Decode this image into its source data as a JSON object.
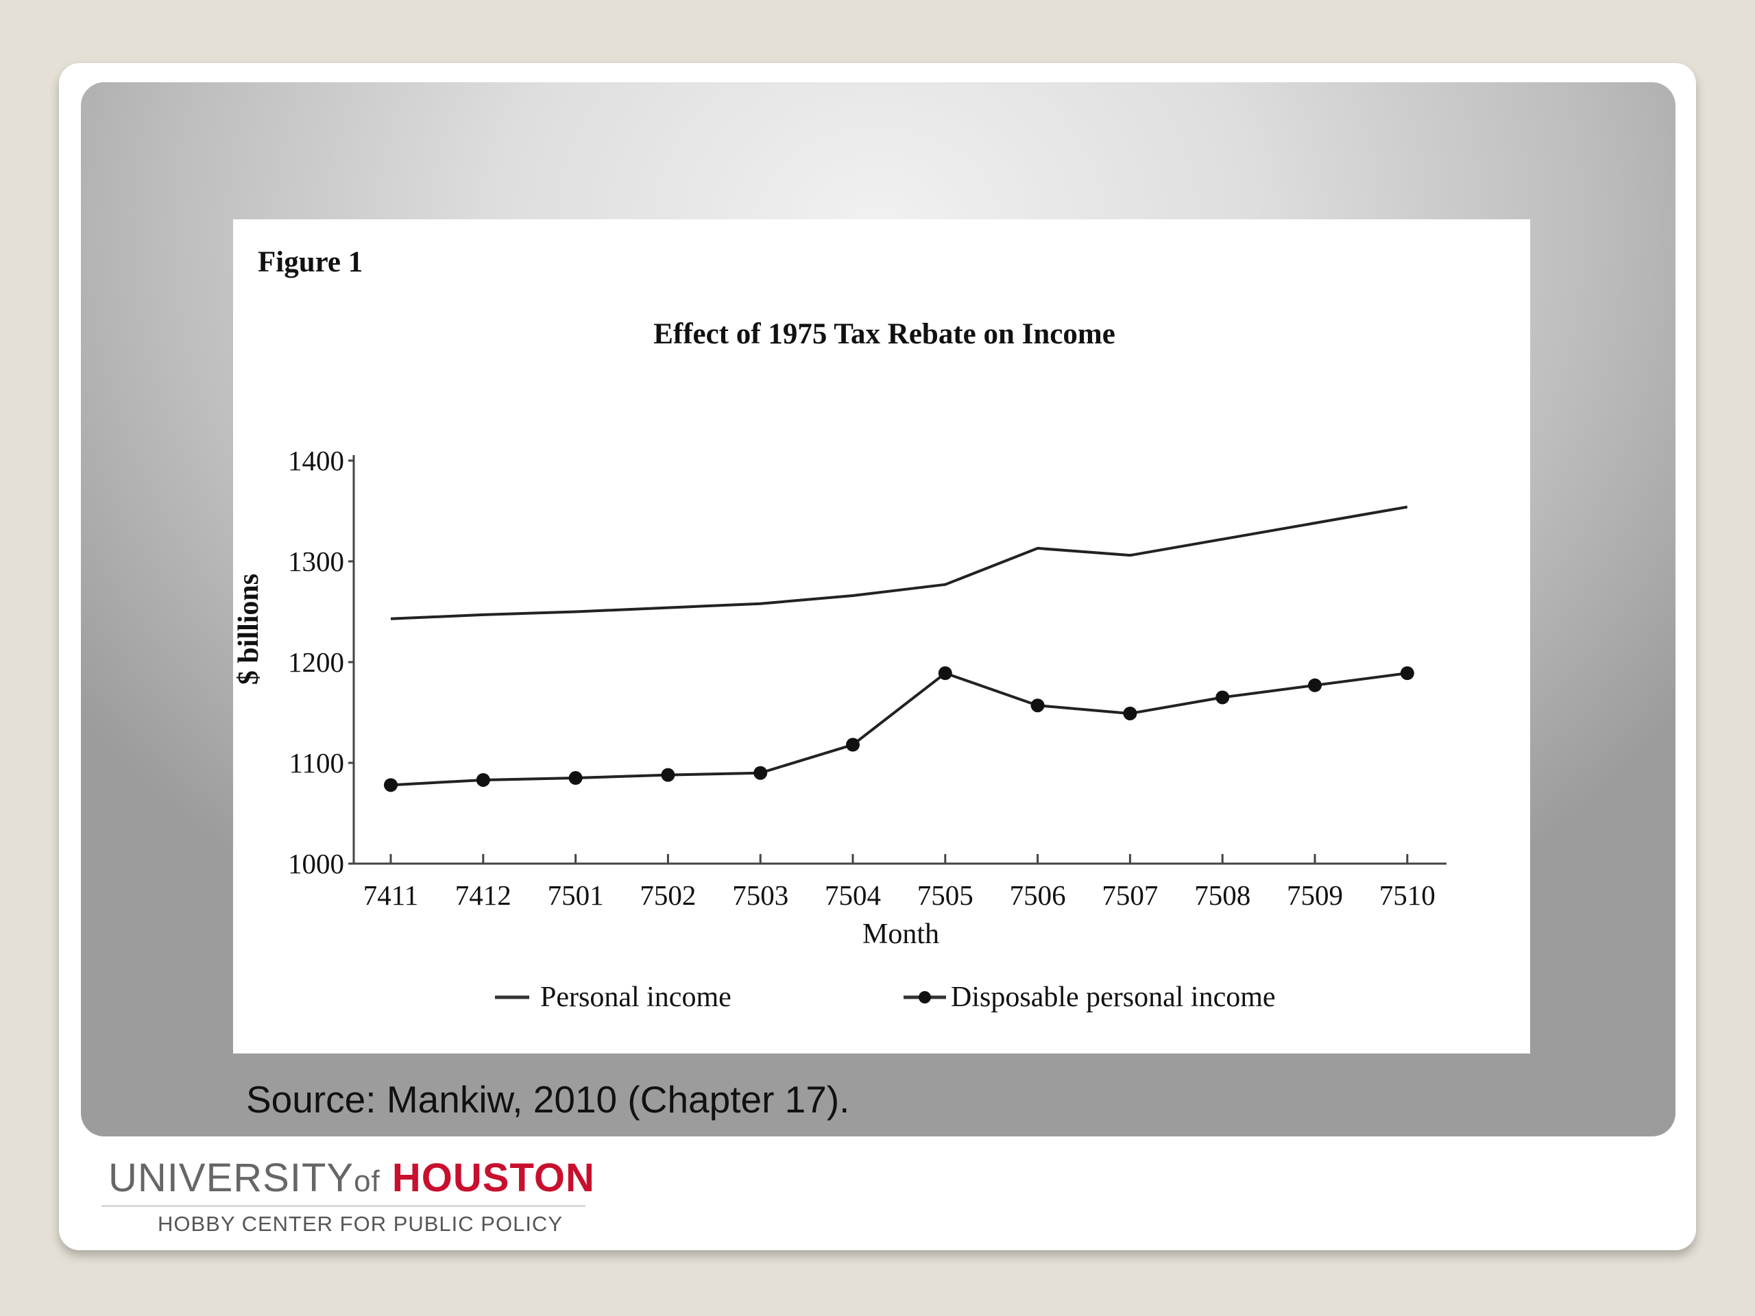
{
  "slide": {
    "source_caption": "Source: Mankiw, 2010 (Chapter 17)."
  },
  "logo": {
    "university": "UNIVERSITY",
    "of": "of",
    "houston": "HOUSTON",
    "subtitle": "HOBBY CENTER FOR PUBLIC POLICY"
  },
  "colors": {
    "houston_red": "#c8102e",
    "line": "#222222"
  },
  "chart_data": {
    "type": "line",
    "figure_label": "Figure 1",
    "title": "Effect of 1975 Tax Rebate on Income",
    "xlabel": "Month",
    "ylabel": "$ billions",
    "ylim": [
      1000,
      1400
    ],
    "yticks": [
      "1000",
      "1100",
      "1200",
      "1300",
      "1400"
    ],
    "categories": [
      "7411",
      "7412",
      "7501",
      "7502",
      "7503",
      "7504",
      "7505",
      "7506",
      "7507",
      "7508",
      "7509",
      "7510"
    ],
    "series": [
      {
        "name": "Personal income",
        "marker": "none",
        "values": [
          1243,
          1247,
          1250,
          1254,
          1258,
          1266,
          1277,
          1313,
          1306,
          1322,
          1338,
          1354
        ]
      },
      {
        "name": "Disposable personal income",
        "marker": "dot",
        "values": [
          1078,
          1083,
          1085,
          1088,
          1090,
          1118,
          1189,
          1157,
          1149,
          1165,
          1177,
          1189
        ]
      }
    ],
    "grid": false,
    "legend_position": "bottom"
  }
}
